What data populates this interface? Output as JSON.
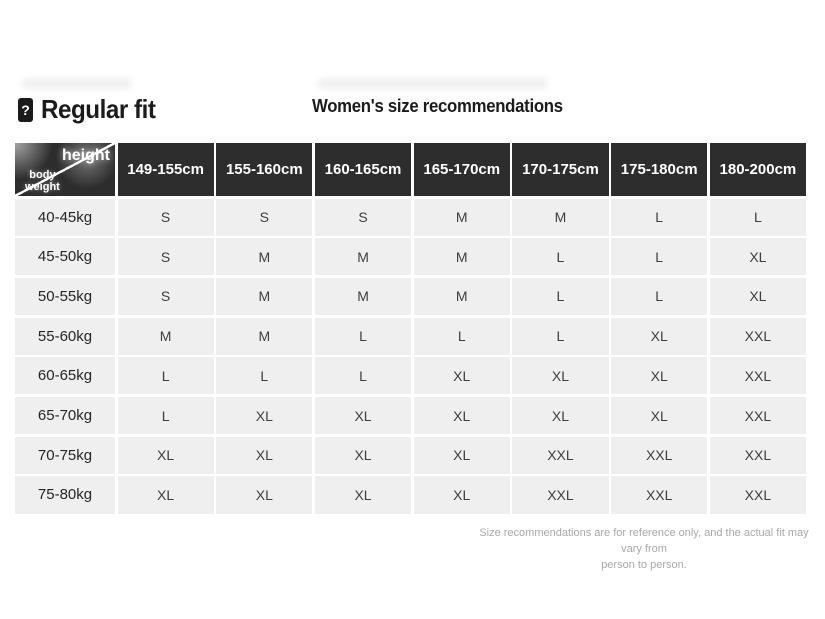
{
  "page": {
    "fit_icon_glyph": "?",
    "fit_label": "Regular fit",
    "table_title": "Women's size recommendations",
    "footer_note_line1": "Size recommendations are for reference only, and the actual fit may vary from",
    "footer_note_line2": "person to person."
  },
  "colors": {
    "header_bg": "#2d2d2d",
    "cell_bg": "#efefef",
    "page_bg": "#ffffff",
    "footer_text": "#a8a8a8"
  },
  "table": {
    "corner": {
      "top_label": "height",
      "bottom_label_line1": "body",
      "bottom_label_line2": "weight"
    },
    "height_headers": [
      "149-155cm",
      "155-160cm",
      "160-165cm",
      "165-170cm",
      "170-175cm",
      "175-180cm",
      "180-200cm"
    ],
    "rows": [
      {
        "weight": "40-45kg",
        "sizes": [
          "S",
          "S",
          "S",
          "M",
          "M",
          "L",
          "L"
        ]
      },
      {
        "weight": "45-50kg",
        "sizes": [
          "S",
          "M",
          "M",
          "M",
          "L",
          "L",
          "XL"
        ]
      },
      {
        "weight": "50-55kg",
        "sizes": [
          "S",
          "M",
          "M",
          "M",
          "L",
          "L",
          "XL"
        ]
      },
      {
        "weight": "55-60kg",
        "sizes": [
          "M",
          "M",
          "L",
          "L",
          "L",
          "XL",
          "XXL"
        ]
      },
      {
        "weight": "60-65kg",
        "sizes": [
          "L",
          "L",
          "L",
          "XL",
          "XL",
          "XL",
          "XXL"
        ]
      },
      {
        "weight": "65-70kg",
        "sizes": [
          "L",
          "XL",
          "XL",
          "XL",
          "XL",
          "XL",
          "XXL"
        ]
      },
      {
        "weight": "70-75kg",
        "sizes": [
          "XL",
          "XL",
          "XL",
          "XL",
          "XXL",
          "XXL",
          "XXL"
        ]
      },
      {
        "weight": "75-80kg",
        "sizes": [
          "XL",
          "XL",
          "XL",
          "XL",
          "XXL",
          "XXL",
          "XXL"
        ]
      }
    ]
  }
}
